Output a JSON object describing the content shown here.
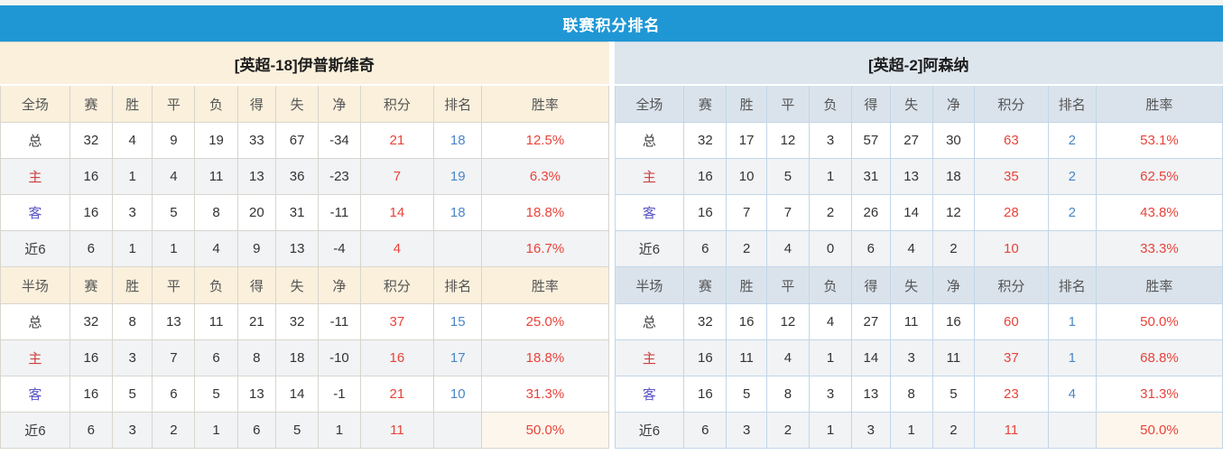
{
  "title": "联赛积分排名",
  "colors": {
    "title_bar_blue": "#1f97d4",
    "left_header_cream": "#faf0dc",
    "right_header_blue": "#dde5ed",
    "value_red": "#e8433a",
    "rank_blue": "#4a86c6",
    "home_label_red": "#cf4040",
    "away_label_blue": "#5a55c5",
    "highlight_ivory": "#fdf6ec"
  },
  "teams": [
    {
      "name": "[英超-18]伊普斯维奇",
      "theme": "cream",
      "sections": [
        {
          "columns": [
            "全场",
            "赛",
            "胜",
            "平",
            "负",
            "得",
            "失",
            "净",
            "积分",
            "排名",
            "胜率"
          ],
          "rows": [
            {
              "label": "总",
              "label_type": "total",
              "stats": [
                "32",
                "4",
                "9",
                "19",
                "33",
                "67",
                "-34"
              ],
              "points": "21",
              "rank": "18",
              "win_rate": "12.5%"
            },
            {
              "label": "主",
              "label_type": "home",
              "stats": [
                "16",
                "1",
                "4",
                "11",
                "13",
                "36",
                "-23"
              ],
              "points": "7",
              "rank": "19",
              "win_rate": "6.3%"
            },
            {
              "label": "客",
              "label_type": "away",
              "stats": [
                "16",
                "3",
                "5",
                "8",
                "20",
                "31",
                "-11"
              ],
              "points": "14",
              "rank": "18",
              "win_rate": "18.8%"
            },
            {
              "label": "近6",
              "label_type": "recent",
              "stats": [
                "6",
                "1",
                "1",
                "4",
                "9",
                "13",
                "-4"
              ],
              "points": "4",
              "rank": "",
              "win_rate": "16.7%"
            }
          ]
        },
        {
          "columns": [
            "半场",
            "赛",
            "胜",
            "平",
            "负",
            "得",
            "失",
            "净",
            "积分",
            "排名",
            "胜率"
          ],
          "rows": [
            {
              "label": "总",
              "label_type": "total",
              "stats": [
                "32",
                "8",
                "13",
                "11",
                "21",
                "32",
                "-11"
              ],
              "points": "37",
              "rank": "15",
              "win_rate": "25.0%"
            },
            {
              "label": "主",
              "label_type": "home",
              "stats": [
                "16",
                "3",
                "7",
                "6",
                "8",
                "18",
                "-10"
              ],
              "points": "16",
              "rank": "17",
              "win_rate": "18.8%"
            },
            {
              "label": "客",
              "label_type": "away",
              "stats": [
                "16",
                "5",
                "6",
                "5",
                "13",
                "14",
                "-1"
              ],
              "points": "21",
              "rank": "10",
              "win_rate": "31.3%"
            },
            {
              "label": "近6",
              "label_type": "recent",
              "stats": [
                "6",
                "3",
                "2",
                "1",
                "6",
                "5",
                "1"
              ],
              "points": "11",
              "rank": "",
              "win_rate": "50.0%",
              "rate_highlight": true
            }
          ]
        }
      ]
    },
    {
      "name": "[英超-2]阿森纳",
      "theme": "blue",
      "sections": [
        {
          "columns": [
            "全场",
            "赛",
            "胜",
            "平",
            "负",
            "得",
            "失",
            "净",
            "积分",
            "排名",
            "胜率"
          ],
          "rows": [
            {
              "label": "总",
              "label_type": "total",
              "stats": [
                "32",
                "17",
                "12",
                "3",
                "57",
                "27",
                "30"
              ],
              "points": "63",
              "rank": "2",
              "win_rate": "53.1%"
            },
            {
              "label": "主",
              "label_type": "home",
              "stats": [
                "16",
                "10",
                "5",
                "1",
                "31",
                "13",
                "18"
              ],
              "points": "35",
              "rank": "2",
              "win_rate": "62.5%"
            },
            {
              "label": "客",
              "label_type": "away",
              "stats": [
                "16",
                "7",
                "7",
                "2",
                "26",
                "14",
                "12"
              ],
              "points": "28",
              "rank": "2",
              "win_rate": "43.8%"
            },
            {
              "label": "近6",
              "label_type": "recent",
              "stats": [
                "6",
                "2",
                "4",
                "0",
                "6",
                "4",
                "2"
              ],
              "points": "10",
              "rank": "",
              "win_rate": "33.3%"
            }
          ]
        },
        {
          "columns": [
            "半场",
            "赛",
            "胜",
            "平",
            "负",
            "得",
            "失",
            "净",
            "积分",
            "排名",
            "胜率"
          ],
          "rows": [
            {
              "label": "总",
              "label_type": "total",
              "stats": [
                "32",
                "16",
                "12",
                "4",
                "27",
                "11",
                "16"
              ],
              "points": "60",
              "rank": "1",
              "win_rate": "50.0%"
            },
            {
              "label": "主",
              "label_type": "home",
              "stats": [
                "16",
                "11",
                "4",
                "1",
                "14",
                "3",
                "11"
              ],
              "points": "37",
              "rank": "1",
              "win_rate": "68.8%"
            },
            {
              "label": "客",
              "label_type": "away",
              "stats": [
                "16",
                "5",
                "8",
                "3",
                "13",
                "8",
                "5"
              ],
              "points": "23",
              "rank": "4",
              "win_rate": "31.3%"
            },
            {
              "label": "近6",
              "label_type": "recent",
              "stats": [
                "6",
                "3",
                "2",
                "1",
                "3",
                "1",
                "2"
              ],
              "points": "11",
              "rank": "",
              "win_rate": "50.0%",
              "rate_highlight": true
            }
          ]
        }
      ]
    }
  ],
  "layout": {
    "column_widths_pct": [
      11.4,
      7.0,
      6.6,
      7.0,
      7.0,
      6.3,
      7.0,
      6.9,
      12.1,
      7.9,
      20.8
    ]
  }
}
